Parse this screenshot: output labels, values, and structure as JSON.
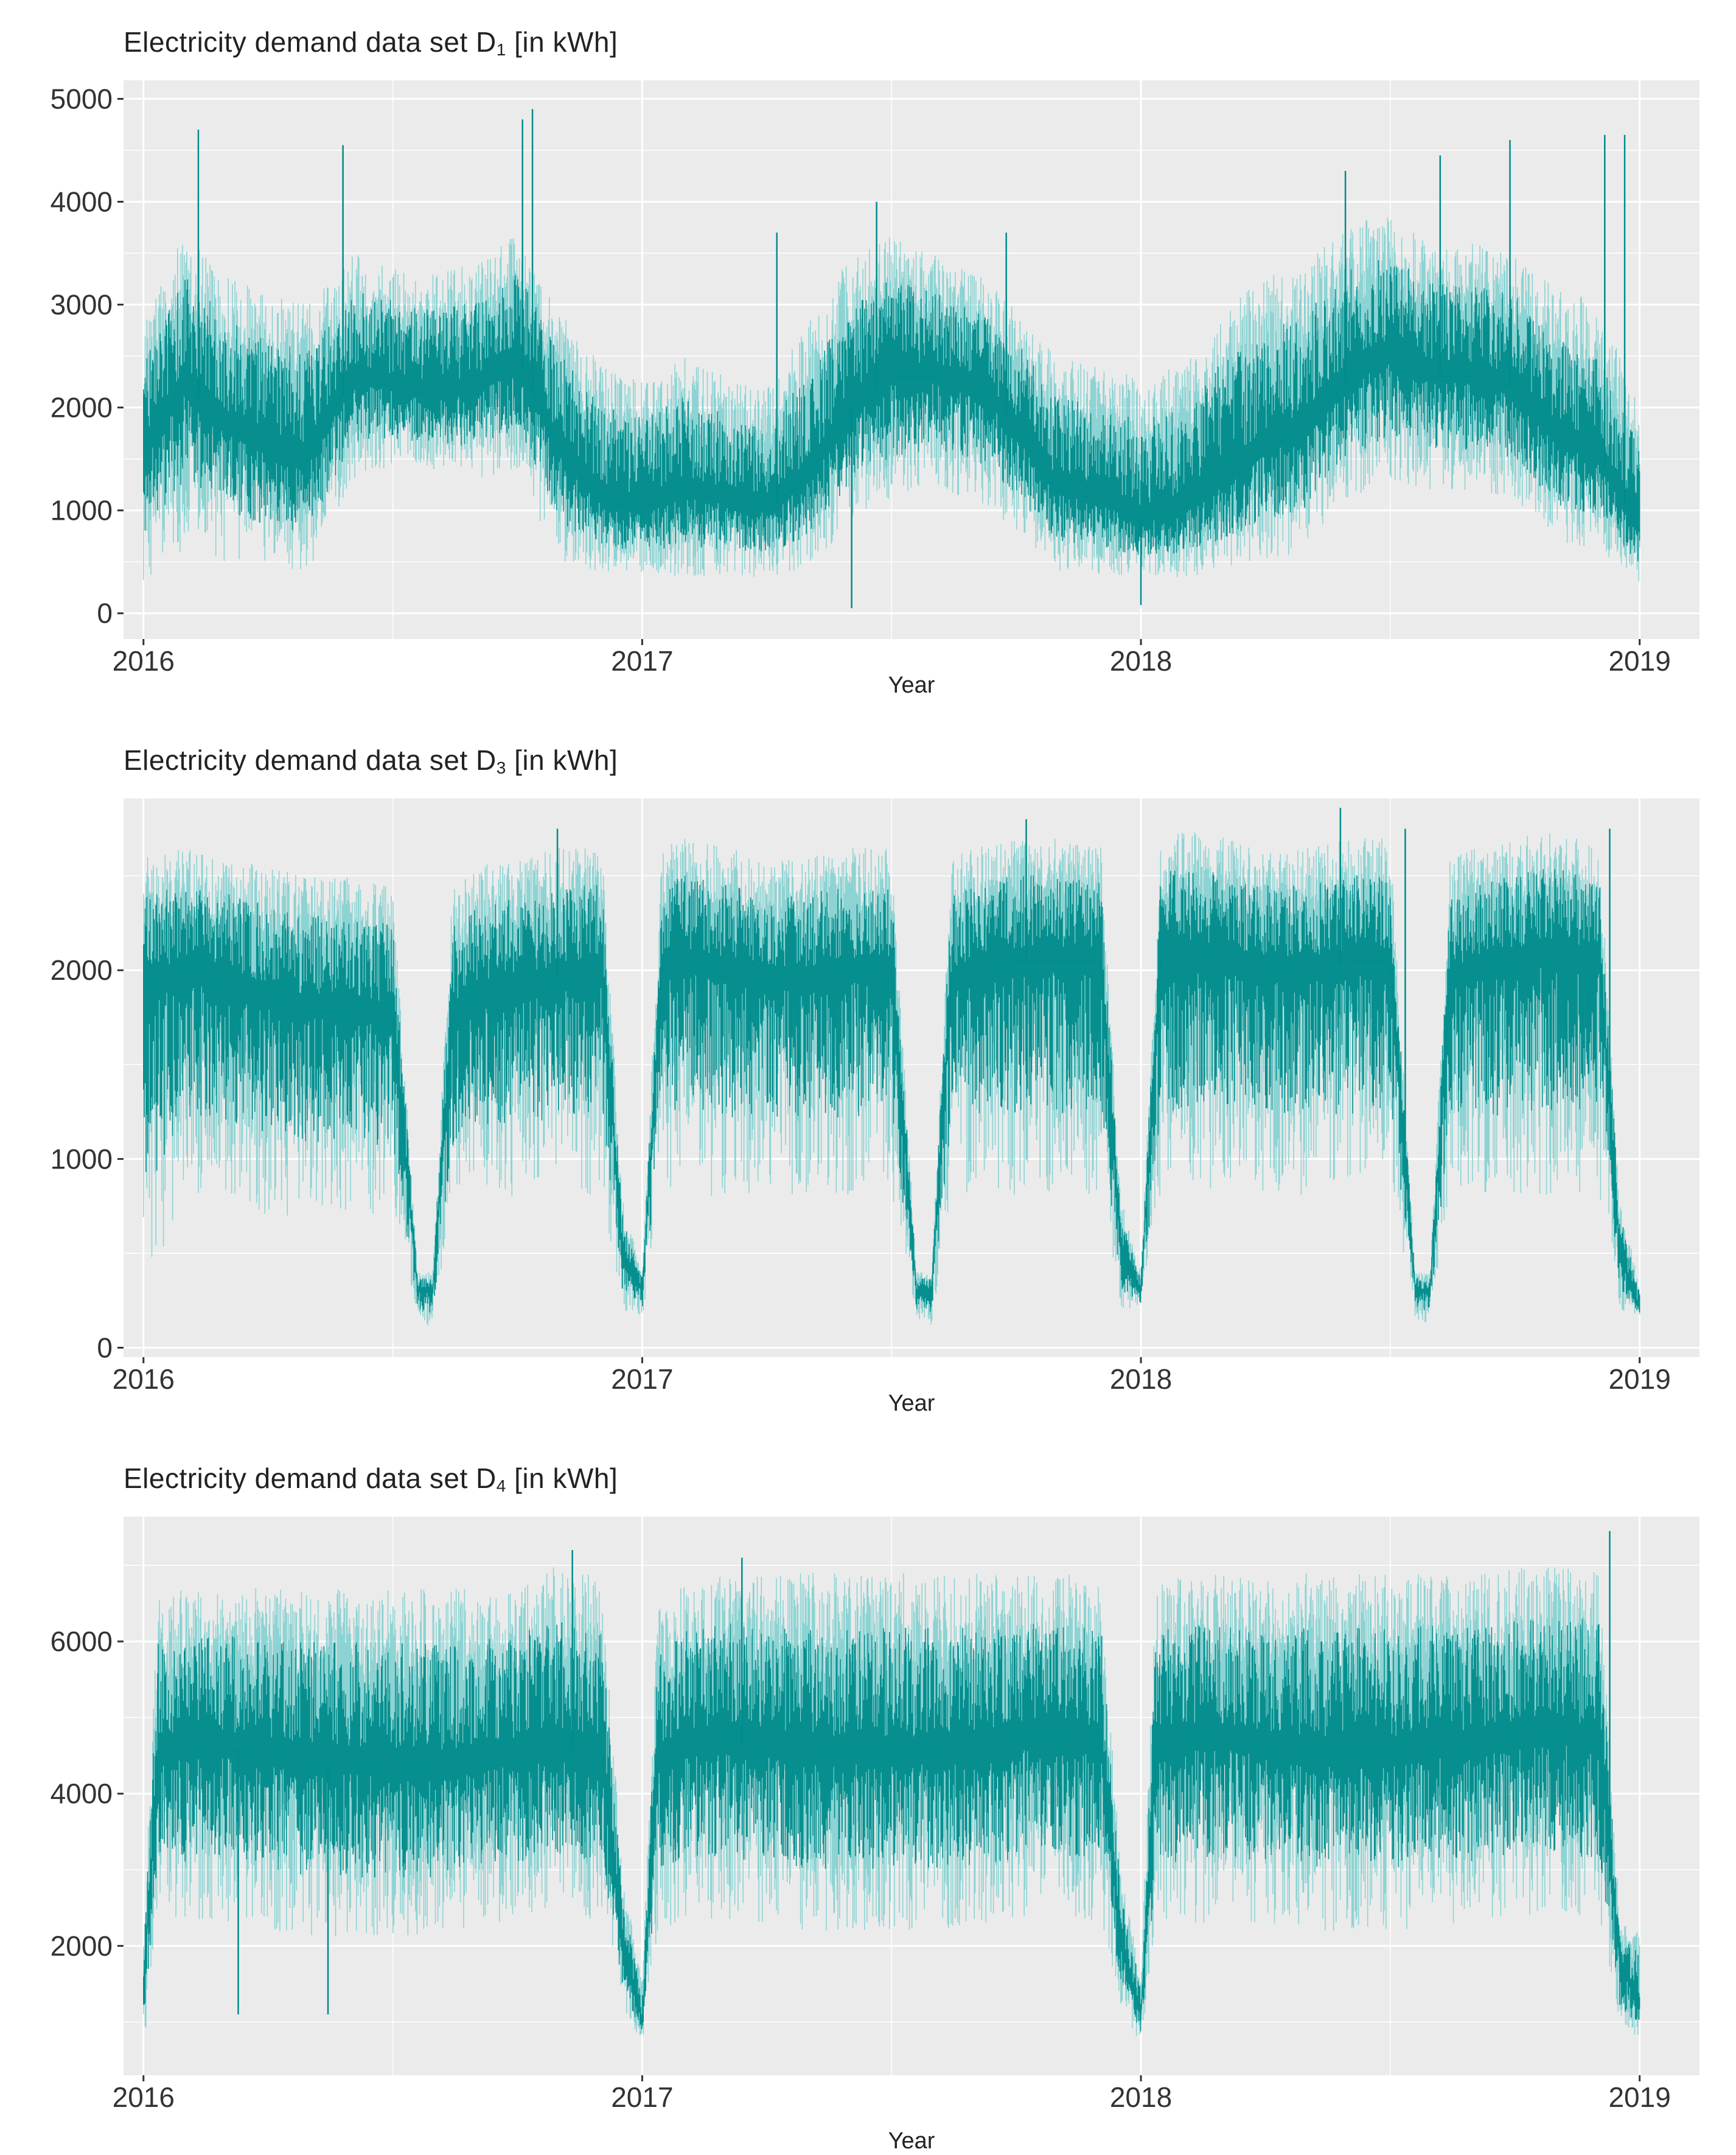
{
  "colors": {
    "series": "#008b8b",
    "series_light": "#7ccfcf",
    "panel_bg": "#ebebeb",
    "grid": "#ffffff",
    "tick": "#333333"
  },
  "chart_data": [
    {
      "type": "line",
      "title_main": "Electricity demand data set D",
      "title_sub": "1",
      "title_unit": " [in kWh]",
      "xlabel": "Year",
      "ylabel": "",
      "xlim": [
        2015.96,
        2019.12
      ],
      "ylim": [
        -250,
        5180
      ],
      "x_ticks": [
        2016,
        2017,
        2018,
        2019
      ],
      "x_tick_labels": [
        "2016",
        "2017",
        "2018",
        "2019"
      ],
      "y_ticks": [
        0,
        1000,
        2000,
        3000,
        4000,
        5000
      ],
      "y_tick_labels": [
        "0",
        "1000",
        "2000",
        "3000",
        "4000",
        "5000"
      ],
      "series": [
        {
          "name": "D1",
          "x": [
            2016.0,
            2016.08,
            2016.17,
            2016.25,
            2016.33,
            2016.42,
            2016.5,
            2016.58,
            2016.67,
            2016.75,
            2016.83,
            2016.92,
            2017.0,
            2017.08,
            2017.17,
            2017.25,
            2017.33,
            2017.42,
            2017.5,
            2017.58,
            2017.67,
            2017.75,
            2017.83,
            2017.92,
            2018.0,
            2018.08,
            2018.17,
            2018.25,
            2018.33,
            2018.42,
            2018.5,
            2018.58,
            2018.67,
            2018.75,
            2018.83,
            2018.92,
            2019.0
          ],
          "low": [
            300,
            600,
            500,
            450,
            400,
            1300,
            1400,
            1400,
            1300,
            1400,
            500,
            400,
            400,
            350,
            350,
            350,
            400,
            900,
            1100,
            1200,
            1100,
            800,
            400,
            350,
            350,
            350,
            400,
            500,
            600,
            1100,
            1300,
            1200,
            1200,
            1100,
            700,
            600,
            300
          ],
          "mid": [
            1600,
            2200,
            1800,
            1600,
            1500,
            2300,
            2200,
            2100,
            2200,
            2500,
            1600,
            1100,
            1000,
            1200,
            1100,
            1000,
            1300,
            2000,
            2300,
            2300,
            2200,
            1800,
            1200,
            1100,
            900,
            1000,
            1300,
            1600,
            1800,
            2300,
            2500,
            2300,
            2300,
            2200,
            1700,
            1500,
            800
          ],
          "high": [
            2800,
            3800,
            3300,
            3100,
            3000,
            3500,
            3400,
            3300,
            3400,
            3700,
            3000,
            2400,
            2300,
            2500,
            2300,
            2200,
            2800,
            3500,
            3700,
            3500,
            3300,
            3000,
            2500,
            2400,
            2300,
            2400,
            3000,
            3300,
            3400,
            3800,
            3900,
            3600,
            3600,
            3500,
            3200,
            3000,
            2000
          ],
          "spikes": [
            [
              2016.11,
              4700
            ],
            [
              2016.4,
              4550
            ],
            [
              2016.78,
              4900
            ],
            [
              2016.76,
              4800
            ],
            [
              2017.27,
              3700
            ],
            [
              2017.47,
              4000
            ],
            [
              2017.73,
              3700
            ],
            [
              2018.41,
              4300
            ],
            [
              2018.6,
              4450
            ],
            [
              2018.74,
              4600
            ],
            [
              2018.93,
              4650
            ],
            [
              2018.97,
              4650
            ],
            [
              2017.42,
              50
            ],
            [
              2018.0,
              80
            ]
          ]
        }
      ]
    },
    {
      "type": "line",
      "title_main": "Electricity demand data set D",
      "title_sub": "3",
      "title_unit": " [in kWh]",
      "xlabel": "Year",
      "ylabel": "",
      "xlim": [
        2015.96,
        2019.12
      ],
      "ylim": [
        -50,
        2910
      ],
      "x_ticks": [
        2016,
        2017,
        2018,
        2019
      ],
      "x_tick_labels": [
        "2016",
        "2017",
        "2018",
        "2019"
      ],
      "y_ticks": [
        0,
        1000,
        2000
      ],
      "y_tick_labels": [
        "0",
        "1000",
        "2000"
      ],
      "series": [
        {
          "name": "D3",
          "x": [
            2016.0,
            2016.08,
            2016.17,
            2016.25,
            2016.33,
            2016.42,
            2016.5,
            2016.55,
            2016.58,
            2016.62,
            2016.67,
            2016.75,
            2016.83,
            2016.92,
            2016.96,
            2017.0,
            2017.04,
            2017.08,
            2017.17,
            2017.25,
            2017.33,
            2017.42,
            2017.5,
            2017.55,
            2017.58,
            2017.62,
            2017.67,
            2017.75,
            2017.83,
            2017.92,
            2017.96,
            2018.0,
            2018.04,
            2018.08,
            2018.17,
            2018.25,
            2018.33,
            2018.42,
            2018.5,
            2018.55,
            2018.58,
            2018.62,
            2018.67,
            2018.75,
            2018.83,
            2018.92,
            2018.96,
            2019.0
          ],
          "low": [
            200,
            800,
            800,
            700,
            700,
            700,
            700,
            150,
            100,
            700,
            800,
            800,
            800,
            800,
            200,
            150,
            800,
            800,
            800,
            800,
            800,
            800,
            800,
            150,
            120,
            800,
            800,
            800,
            800,
            800,
            200,
            200,
            800,
            800,
            800,
            800,
            800,
            800,
            800,
            150,
            120,
            800,
            800,
            800,
            800,
            800,
            200,
            170
          ],
          "mid": [
            1900,
            2000,
            1950,
            1850,
            1800,
            1800,
            1750,
            300,
            300,
            1750,
            1850,
            1900,
            1950,
            2000,
            500,
            300,
            2000,
            2050,
            2000,
            1950,
            1950,
            2000,
            2000,
            300,
            300,
            1950,
            2000,
            2050,
            2050,
            2050,
            500,
            300,
            2050,
            2100,
            2050,
            2000,
            2000,
            2050,
            2050,
            300,
            300,
            1950,
            2000,
            2050,
            2100,
            2050,
            500,
            200
          ],
          "high": [
            2600,
            2650,
            2600,
            2550,
            2500,
            2500,
            2450,
            400,
            400,
            2450,
            2550,
            2600,
            2650,
            2650,
            800,
            400,
            2650,
            2700,
            2650,
            2600,
            2600,
            2650,
            2650,
            400,
            400,
            2600,
            2650,
            2700,
            2700,
            2650,
            800,
            400,
            2700,
            2750,
            2700,
            2650,
            2650,
            2700,
            2700,
            400,
            400,
            2600,
            2650,
            2700,
            2750,
            2650,
            800,
            330
          ],
          "spikes": [
            [
              2016.83,
              2750
            ],
            [
              2017.77,
              2800
            ],
            [
              2018.4,
              2860
            ],
            [
              2018.53,
              2750
            ],
            [
              2018.94,
              2750
            ]
          ]
        }
      ]
    },
    {
      "type": "line",
      "title_main": "Electricity demand data set D",
      "title_sub": "4",
      "title_unit": " [in kWh]",
      "xlabel": "Year",
      "ylabel": "",
      "xlim": [
        2015.96,
        2019.12
      ],
      "ylim": [
        300,
        7640
      ],
      "x_ticks": [
        2016,
        2017,
        2018,
        2019
      ],
      "x_tick_labels": [
        "2016",
        "2017",
        "2018",
        "2019"
      ],
      "y_ticks": [
        2000,
        4000,
        6000
      ],
      "y_tick_labels": [
        "2000",
        "4000",
        "6000"
      ],
      "series": [
        {
          "name": "D4",
          "x": [
            2016.0,
            2016.03,
            2016.08,
            2016.17,
            2016.25,
            2016.33,
            2016.42,
            2016.5,
            2016.58,
            2016.67,
            2016.75,
            2016.83,
            2016.92,
            2016.96,
            2017.0,
            2017.03,
            2017.08,
            2017.17,
            2017.25,
            2017.33,
            2017.42,
            2017.5,
            2017.58,
            2017.67,
            2017.75,
            2017.83,
            2017.92,
            2017.96,
            2018.0,
            2018.03,
            2018.08,
            2018.17,
            2018.25,
            2018.33,
            2018.42,
            2018.5,
            2018.58,
            2018.67,
            2018.75,
            2018.83,
            2018.92,
            2018.96,
            2019.0
          ],
          "low": [
            600,
            2500,
            2300,
            2300,
            2200,
            2100,
            2100,
            2100,
            2100,
            2200,
            2300,
            2400,
            2300,
            1200,
            700,
            2000,
            2300,
            2300,
            2300,
            2200,
            2200,
            2200,
            2200,
            2200,
            2300,
            2400,
            2300,
            1200,
            700,
            2100,
            2300,
            2300,
            2300,
            2200,
            2200,
            2200,
            2200,
            2300,
            2400,
            2400,
            2300,
            900,
            700
          ],
          "mid": [
            1500,
            4500,
            4600,
            4600,
            4500,
            4400,
            4400,
            4300,
            4300,
            4400,
            4500,
            4600,
            4500,
            2000,
            1000,
            4400,
            4600,
            4700,
            4600,
            4500,
            4500,
            4500,
            4500,
            4600,
            4700,
            4700,
            4600,
            2000,
            1100,
            4500,
            4700,
            4700,
            4600,
            4500,
            4500,
            4500,
            4600,
            4600,
            4700,
            4800,
            4600,
            1800,
            1200
          ],
          "high": [
            2000,
            6700,
            6700,
            6700,
            6700,
            6700,
            6700,
            6700,
            6700,
            6700,
            6800,
            7000,
            6900,
            3000,
            1500,
            6400,
            6800,
            6900,
            6900,
            6900,
            6900,
            6900,
            6900,
            6900,
            6900,
            6900,
            6900,
            3000,
            1600,
            6800,
            6900,
            6900,
            6900,
            6900,
            6900,
            6900,
            6900,
            6900,
            7000,
            7000,
            7000,
            2300,
            2200
          ],
          "spikes": [
            [
              2016.86,
              7200
            ],
            [
              2017.2,
              7100
            ],
            [
              2018.94,
              7450
            ],
            [
              2016.19,
              1100
            ],
            [
              2016.37,
              1100
            ]
          ]
        }
      ]
    }
  ]
}
